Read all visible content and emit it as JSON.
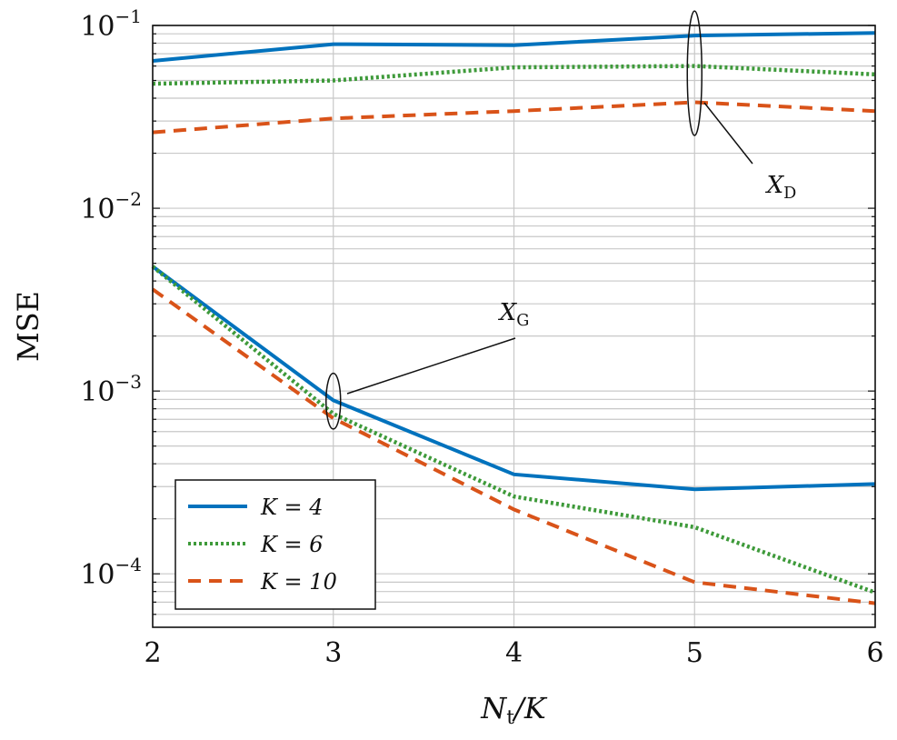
{
  "chart_data": {
    "type": "line",
    "xlabel": "N_t/K",
    "ylabel": "MSE",
    "x": [
      2,
      3,
      4,
      5,
      6
    ],
    "xlim": [
      2,
      6
    ],
    "ylim": [
      5.1e-05,
      0.1
    ],
    "yscale": "log",
    "xticks": [
      "2",
      "3",
      "4",
      "5",
      "6"
    ],
    "yticks": [
      {
        "value": 0.1,
        "base": "10",
        "exp": "−1"
      },
      {
        "value": 0.01,
        "base": "10",
        "exp": "−2"
      },
      {
        "value": 0.001,
        "base": "10",
        "exp": "−3"
      },
      {
        "value": 0.0001,
        "base": "10",
        "exp": "−4"
      }
    ],
    "grid": true,
    "legend_position": "bottom-left",
    "series": [
      {
        "name": "K = 4",
        "color": "#0072BD",
        "dash": "solid",
        "group": "X_D",
        "values": [
          0.064,
          0.079,
          0.078,
          0.088,
          0.091
        ]
      },
      {
        "name": "K = 6",
        "color": "#3E9A3A",
        "dash": "dotted",
        "group": "X_D",
        "values": [
          0.048,
          0.05,
          0.059,
          0.06,
          0.054
        ]
      },
      {
        "name": "K = 10",
        "color": "#D95319",
        "dash": "dashed",
        "group": "X_D",
        "values": [
          0.026,
          0.031,
          0.034,
          0.038,
          0.034
        ]
      },
      {
        "name": "K = 4",
        "color": "#0072BD",
        "dash": "solid",
        "group": "X_G",
        "values": [
          0.0048,
          0.00089,
          0.00035,
          0.00029,
          0.00031
        ]
      },
      {
        "name": "K = 6",
        "color": "#3E9A3A",
        "dash": "dotted",
        "group": "X_G",
        "values": [
          0.0048,
          0.00075,
          0.000265,
          0.00018,
          7.9e-05
        ]
      },
      {
        "name": "K = 10",
        "color": "#D95319",
        "dash": "dashed",
        "group": "X_G",
        "values": [
          0.0036,
          0.00071,
          0.000225,
          9e-05,
          6.9e-05
        ]
      }
    ],
    "legend": [
      {
        "label": "K = 4",
        "color": "#0072BD",
        "dash": "solid"
      },
      {
        "label": "K = 6",
        "color": "#3E9A3A",
        "dash": "dotted"
      },
      {
        "label": "K = 10",
        "color": "#D95319",
        "dash": "dashed"
      }
    ],
    "annotations": [
      {
        "text": "X_D",
        "x": 5,
        "y_range": [
          0.025,
          0.12
        ]
      },
      {
        "text": "X_G",
        "x": 3,
        "y_range": [
          0.00062,
          0.00125
        ]
      }
    ]
  }
}
